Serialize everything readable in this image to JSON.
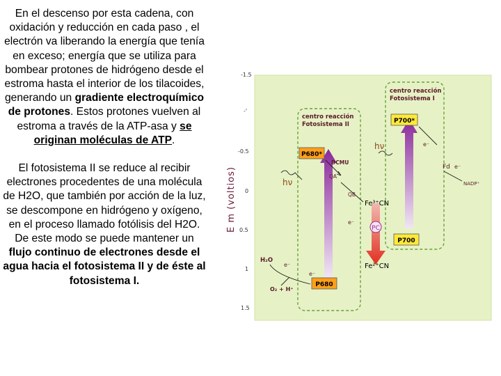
{
  "text": {
    "p1_a": "En el descenso por esta cadena, con oxidación y reducción en cada paso , el electrón va liberando la energía que tenía en exceso; energía que se utiliza para bombear protones de hidrógeno desde el estroma hasta el interior de los tilacoides, generando un ",
    "p1_b": "gradiente electroquímico de protones",
    "p1_c": ". Estos protones vuelven al estroma a través de la ATP-asa y ",
    "p1_d": "se originan moléculas de ATP",
    "p1_e": ".",
    "p2_a": "El fotosistema II se reduce al recibir electrones procedentes de una molécula de H2O, que también por acción de la luz, se descompone en hidrógeno y oxígeno, en el proceso llamado fotólisis del H2O. De este modo se puede mantener un ",
    "p2_b": "flujo continuo de electrones desde el agua hacia el fotosistema II y de éste al fotosistema I."
  },
  "diagram": {
    "axis_label": "E m (voltios)",
    "ticks": [
      "-1.5",
      "-'",
      "-0.5",
      "0",
      "0.5",
      "1",
      "1.5"
    ],
    "ps2_label_1": "centro reacción",
    "ps2_label_2": "Fotosistema II",
    "ps1_label_1": "centro reacción",
    "ps1_label_2": "Fotosistema I",
    "p680_star": "P680*",
    "p680": "P680",
    "p700_star": "P700*",
    "p700": "P700",
    "hv1": "hν",
    "hv2": "hν",
    "dcmu": "DCMU",
    "qa": "QA",
    "qb": "QB",
    "fe3": "Fe³⁺CN",
    "fe2": "Fe²⁺CN",
    "pc": "PC",
    "fd": "Fd",
    "nadp": "NADP⁺",
    "h2o": "H₂O",
    "o2": "O₂ + H⁺",
    "e1": "e⁻",
    "e2": "e⁻",
    "e3": "e⁻",
    "e4": "e⁻",
    "e5": "e⁻",
    "colors": {
      "background": "#e6f2c5",
      "p680_box": "#ff9f1a",
      "p700_box": "#ffe83a",
      "arrow_top": "#8a2a9a",
      "arrow_bottom": "#f0e6f4",
      "down_arrow": "#e03020"
    }
  }
}
